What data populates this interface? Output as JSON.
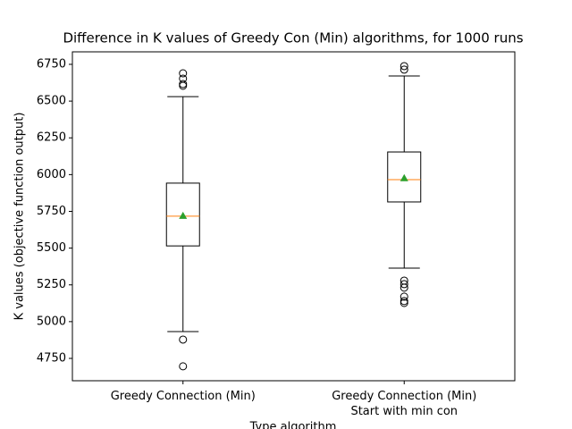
{
  "chart_data": {
    "type": "box",
    "title": "Difference in K values of Greedy Con (Min) algorithms, for 1000 runs",
    "xlabel": "Type algorithm",
    "ylabel": "K values (objective function output)",
    "categories": [
      [
        "Greedy Connection (Min)"
      ],
      [
        "Greedy Connection (Min)",
        "Start with min con"
      ]
    ],
    "boxes": [
      {
        "whislo": 4932,
        "q1": 5515,
        "med": 5717,
        "q3": 5942,
        "whishi": 6530,
        "mean": 5720,
        "fliers": [
          6689,
          6653,
          6616,
          6604,
          4878,
          4696
        ]
      },
      {
        "whislo": 5364,
        "q1": 5814,
        "med": 5966,
        "q3": 6154,
        "whishi": 6671,
        "mean": 5976,
        "fliers": [
          6738,
          6714,
          5279,
          5255,
          5231,
          5170,
          5140,
          5127
        ]
      }
    ],
    "median_color": "#ff7f0e",
    "mean_color": "#2ca02c",
    "ylim": [
      4598,
      6835
    ],
    "yticks": [
      4750,
      5000,
      5250,
      5500,
      5750,
      6000,
      6250,
      6500,
      6750
    ]
  }
}
